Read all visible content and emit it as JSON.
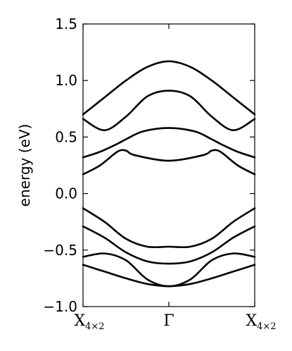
{
  "chart_data": {
    "type": "line",
    "title": "",
    "xlabel": "",
    "ylabel": "energy (eV)",
    "x_range": [
      -1,
      1
    ],
    "ylim": [
      -1.0,
      1.5
    ],
    "yticks": [
      -1.0,
      -0.5,
      0.0,
      0.5,
      1.0,
      1.5
    ],
    "ytick_labels": [
      "−1.0",
      "−0.5",
      "0.0",
      "0.5",
      "1.0",
      "1.5"
    ],
    "xticks": [
      {
        "x": -1,
        "label": "X",
        "subscript": "4×2"
      },
      {
        "x": 0,
        "label": "Γ",
        "subscript": ""
      },
      {
        "x": 1,
        "label": "X",
        "subscript": "4×2"
      }
    ],
    "grid": false,
    "line_color": "#000000",
    "series": [
      {
        "x": [
          -1,
          -0.75,
          -0.5,
          -0.25,
          0,
          0.25,
          0.5,
          0.75,
          1
        ],
        "values": [
          0.7,
          0.85,
          1.0,
          1.12,
          1.17,
          1.12,
          1.0,
          0.85,
          0.7
        ]
      },
      {
        "x": [
          -1,
          -0.75,
          -0.5,
          -0.25,
          0,
          0.25,
          0.5,
          0.75,
          1
        ],
        "values": [
          0.66,
          0.56,
          0.68,
          0.86,
          0.91,
          0.86,
          0.68,
          0.56,
          0.66
        ]
      },
      {
        "x": [
          -1,
          -0.8,
          -0.6,
          -0.5,
          -0.3,
          0,
          0.3,
          0.5,
          0.6,
          0.8,
          1
        ],
        "values": [
          0.32,
          0.37,
          0.44,
          0.48,
          0.55,
          0.58,
          0.55,
          0.48,
          0.44,
          0.37,
          0.32
        ]
      },
      {
        "x": [
          -1,
          -0.8,
          -0.6,
          -0.5,
          -0.4,
          0,
          0.4,
          0.5,
          0.6,
          0.8,
          1
        ],
        "values": [
          0.17,
          0.25,
          0.37,
          0.38,
          0.34,
          0.29,
          0.34,
          0.38,
          0.37,
          0.25,
          0.17
        ]
      },
      {
        "x": [
          -1,
          -0.75,
          -0.5,
          -0.25,
          0,
          0.25,
          0.5,
          0.75,
          1
        ],
        "values": [
          -0.13,
          -0.25,
          -0.4,
          -0.47,
          -0.47,
          -0.47,
          -0.4,
          -0.25,
          -0.13
        ]
      },
      {
        "x": [
          -1,
          -0.75,
          -0.5,
          -0.25,
          0,
          0.25,
          0.5,
          0.75,
          1
        ],
        "values": [
          -0.29,
          -0.39,
          -0.52,
          -0.6,
          -0.62,
          -0.6,
          -0.52,
          -0.39,
          -0.29
        ]
      },
      {
        "x": [
          -1,
          -0.75,
          -0.5,
          -0.25,
          0,
          0.25,
          0.5,
          0.75,
          1
        ],
        "values": [
          -0.56,
          -0.53,
          -0.59,
          -0.76,
          -0.82,
          -0.76,
          -0.59,
          -0.53,
          -0.56
        ]
      },
      {
        "x": [
          -1,
          -0.75,
          -0.5,
          -0.25,
          0,
          0.25,
          0.5,
          0.75,
          1
        ],
        "values": [
          -0.63,
          -0.69,
          -0.75,
          -0.8,
          -0.82,
          -0.8,
          -0.75,
          -0.69,
          -0.63
        ]
      }
    ]
  }
}
